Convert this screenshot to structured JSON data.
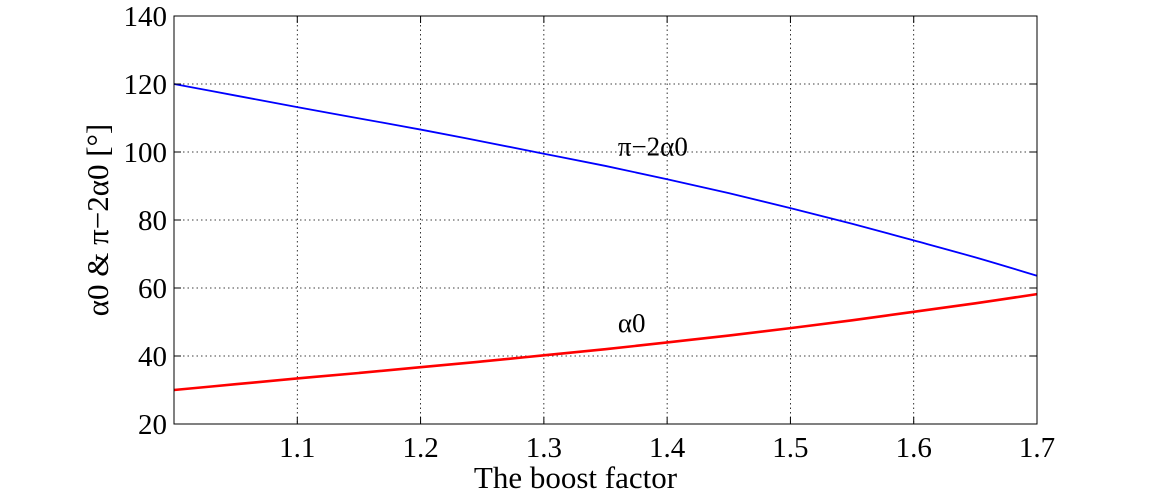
{
  "chart_data": {
    "type": "line",
    "title": "",
    "xlabel": "The  boost factor",
    "ylabel": "α0 & π−2α0 [°]",
    "xlim": [
      1.0,
      1.7
    ],
    "ylim": [
      20,
      140
    ],
    "xticks": [
      1.1,
      1.2,
      1.3,
      1.4,
      1.5,
      1.6,
      1.7
    ],
    "yticks": [
      20,
      40,
      60,
      80,
      100,
      120,
      140
    ],
    "grid": true,
    "legend": "none",
    "series": [
      {
        "name": "π−2α0",
        "color": "#0000ff",
        "x": [
          1.0,
          1.05,
          1.1,
          1.15,
          1.2,
          1.25,
          1.3,
          1.35,
          1.4,
          1.45,
          1.5,
          1.55,
          1.6,
          1.65,
          1.7
        ],
        "y": [
          120.0,
          116.6,
          113.2,
          109.9,
          106.6,
          103.1,
          99.5,
          95.9,
          92.0,
          87.9,
          83.5,
          78.9,
          74.0,
          69.0,
          63.6
        ]
      },
      {
        "name": "α0",
        "color": "#ff0000",
        "x": [
          1.0,
          1.05,
          1.1,
          1.15,
          1.2,
          1.25,
          1.3,
          1.35,
          1.4,
          1.45,
          1.5,
          1.55,
          1.6,
          1.65,
          1.7
        ],
        "y": [
          30.0,
          31.7,
          33.4,
          35.0,
          36.7,
          38.4,
          40.2,
          42.0,
          44.0,
          46.0,
          48.2,
          50.5,
          53.0,
          55.5,
          58.2
        ]
      }
    ],
    "annotations": [
      {
        "text": "π−2α0",
        "x": 1.36,
        "y": 99
      },
      {
        "text": "α0",
        "x": 1.36,
        "y": 47
      }
    ]
  }
}
